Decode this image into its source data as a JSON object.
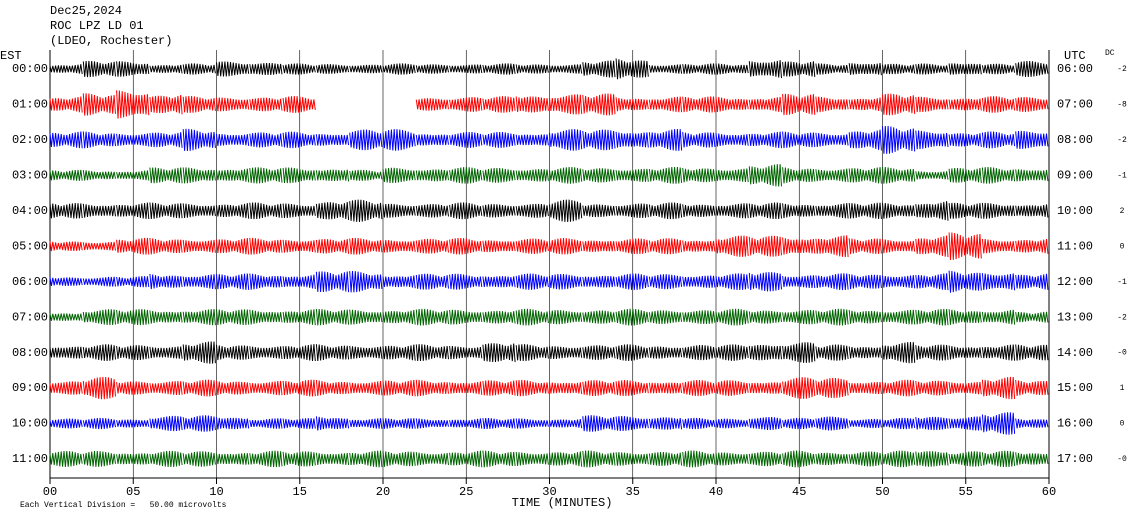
{
  "chart_data": {
    "type": "helicorder",
    "title": "Dec25,2024",
    "station": "ROC LPZ LD 01",
    "source": "(LDEO, Rochester)",
    "left_axis_label": "EST",
    "right_axis_label": "UTC",
    "dc_label": "DC",
    "x_label": "TIME (MINUTES)",
    "note": "Each Vertical Division =   50.00 microvolts",
    "xlim": [
      0,
      60
    ],
    "xticks": [
      {
        "value": 0,
        "label": "00"
      },
      {
        "value": 5,
        "label": "05"
      },
      10,
      15,
      20,
      25,
      30,
      35,
      40,
      45,
      50,
      55,
      60
    ],
    "series": [
      {
        "name": "00:00",
        "utc": "06:00",
        "dc": "-2",
        "color": "#000000",
        "values": [
          2,
          3,
          3,
          2,
          2,
          3,
          3,
          2,
          2,
          2,
          2,
          2,
          2,
          2,
          2,
          2,
          3,
          4,
          2,
          2,
          2,
          4,
          3,
          2,
          3,
          2,
          2,
          3,
          2,
          3
        ]
      },
      {
        "name": "01:00",
        "utc": "07:00",
        "dc": "-8",
        "color": "#ff0000",
        "values": [
          3,
          4,
          6,
          4,
          3,
          3,
          3,
          3,
          null,
          null,
          null,
          3,
          3,
          3,
          4,
          4,
          4,
          3,
          3,
          3,
          3,
          3,
          4,
          3,
          3,
          4,
          3,
          3,
          3,
          3
        ]
      },
      {
        "name": "02:00",
        "utc": "08:00",
        "dc": "-2",
        "color": "#0000ff",
        "values": [
          3,
          3,
          3,
          3,
          4,
          3,
          3,
          3,
          3,
          4,
          4,
          3,
          3,
          3,
          3,
          4,
          4,
          4,
          4,
          3,
          3,
          3,
          3,
          3,
          4,
          5,
          4,
          3,
          3,
          4
        ]
      },
      {
        "name": "03:00",
        "utc": "09:00",
        "dc": "-1",
        "color": "#006400",
        "values": [
          2,
          2,
          2,
          3,
          3,
          3,
          3,
          3,
          3,
          2,
          3,
          3,
          3,
          3,
          3,
          3,
          3,
          3,
          3,
          3,
          3,
          4,
          3,
          3,
          3,
          3,
          2,
          3,
          3,
          3
        ]
      },
      {
        "name": "04:00",
        "utc": "10:00",
        "dc": "2",
        "color": "#000000",
        "values": [
          3,
          3,
          3,
          3,
          3,
          3,
          3,
          3,
          4,
          4,
          3,
          3,
          3,
          3,
          3,
          4,
          3,
          3,
          3,
          3,
          3,
          3,
          3,
          3,
          3,
          3,
          4,
          3,
          3,
          3
        ]
      },
      {
        "name": "05:00",
        "utc": "11:00",
        "dc": "0",
        "color": "#ff0000",
        "values": [
          2,
          2,
          3,
          3,
          3,
          3,
          3,
          3,
          3,
          3,
          3,
          3,
          3,
          3,
          3,
          3,
          3,
          3,
          3,
          3,
          4,
          4,
          4,
          4,
          3,
          3,
          4,
          5,
          3,
          3
        ]
      },
      {
        "name": "06:00",
        "utc": "12:00",
        "dc": "-1",
        "color": "#0000ff",
        "values": [
          2,
          2,
          2,
          3,
          3,
          3,
          3,
          3,
          4,
          4,
          3,
          3,
          3,
          3,
          3,
          3,
          3,
          3,
          3,
          3,
          3,
          4,
          3,
          3,
          3,
          3,
          3,
          4,
          4,
          3
        ]
      },
      {
        "name": "07:00",
        "utc": "13:00",
        "dc": "-2",
        "color": "#006400",
        "values": [
          2,
          3,
          3,
          3,
          3,
          3,
          3,
          3,
          3,
          3,
          3,
          3,
          3,
          3,
          3,
          3,
          3,
          3,
          3,
          3,
          3,
          3,
          3,
          3,
          3,
          3,
          3,
          3,
          3,
          2
        ]
      },
      {
        "name": "08:00",
        "utc": "14:00",
        "dc": "-0",
        "color": "#000000",
        "values": [
          3,
          3,
          3,
          3,
          4,
          3,
          3,
          3,
          3,
          3,
          3,
          3,
          3,
          4,
          3,
          3,
          3,
          3,
          3,
          3,
          3,
          4,
          4,
          3,
          3,
          4,
          3,
          3,
          3,
          3
        ]
      },
      {
        "name": "09:00",
        "utc": "15:00",
        "dc": "1",
        "color": "#ff0000",
        "values": [
          3,
          4,
          3,
          3,
          3,
          3,
          3,
          3,
          3,
          3,
          3,
          3,
          3,
          3,
          3,
          3,
          3,
          3,
          3,
          3,
          3,
          3,
          4,
          4,
          3,
          3,
          3,
          3,
          4,
          3
        ]
      },
      {
        "name": "10:00",
        "utc": "16:00",
        "dc": "0",
        "color": "#0000ff",
        "values": [
          2,
          2,
          2,
          3,
          3,
          3,
          2,
          2,
          3,
          2,
          2,
          2,
          2,
          2,
          2,
          2,
          3,
          3,
          3,
          2,
          2,
          3,
          2,
          3,
          2,
          2,
          3,
          3,
          4,
          2
        ]
      },
      {
        "name": "11:00",
        "utc": "17:00",
        "dc": "-0",
        "color": "#006400",
        "values": [
          3,
          3,
          3,
          3,
          3,
          3,
          3,
          3,
          3,
          3,
          3,
          3,
          3,
          3,
          3,
          3,
          3,
          3,
          3,
          3,
          3,
          3,
          3,
          3,
          3,
          3,
          4,
          3,
          3,
          3
        ]
      }
    ]
  }
}
